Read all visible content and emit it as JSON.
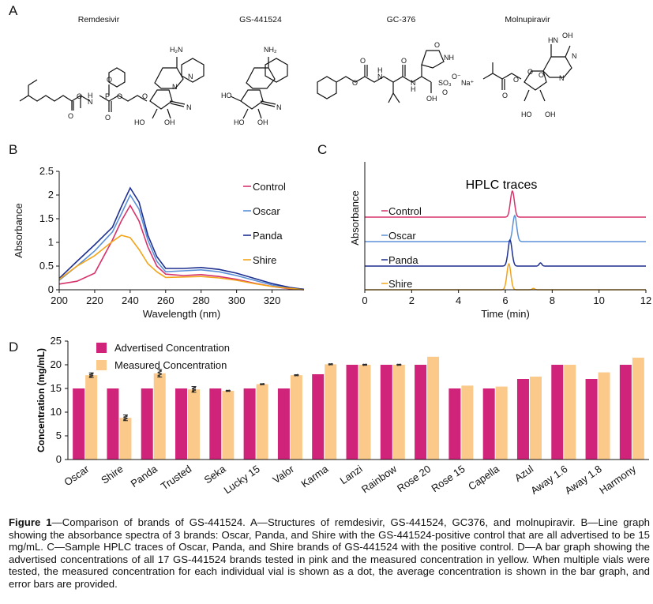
{
  "panels": {
    "a": "A",
    "b": "B",
    "c": "C",
    "d": "D"
  },
  "structures": {
    "names": [
      {
        "key": "remdesivir",
        "label": "Remdesivir"
      },
      {
        "key": "gs441524",
        "label": "GS-441524"
      },
      {
        "key": "gc376",
        "label": "GC-376"
      },
      {
        "key": "molnupiravir",
        "label": "Molnupiravir"
      }
    ]
  },
  "chart_data": [
    {
      "id": "B",
      "type": "line",
      "title": "",
      "xlabel": "Wavelength (nm)",
      "ylabel": "Absorbance",
      "xlim": [
        200,
        338
      ],
      "ylim": [
        0,
        2.5
      ],
      "xticks": [
        200,
        220,
        240,
        260,
        280,
        300,
        320
      ],
      "yticks": [
        0,
        0.5,
        1,
        1.5,
        2,
        2.5
      ],
      "ytick_labels": [
        "0",
        "0.5",
        "1",
        "1.5",
        "2",
        "2.5"
      ],
      "legend_position": "right",
      "x": [
        200,
        210,
        220,
        230,
        235,
        240,
        245,
        250,
        255,
        260,
        270,
        280,
        290,
        300,
        310,
        320,
        330,
        338
      ],
      "series": [
        {
          "name": "Control",
          "color": "#d6336c",
          "values": [
            0.12,
            0.18,
            0.35,
            1.05,
            1.45,
            1.78,
            1.45,
            0.9,
            0.5,
            0.33,
            0.3,
            0.32,
            0.28,
            0.22,
            0.14,
            0.07,
            0.02,
            0.0
          ]
        },
        {
          "name": "Oscar",
          "color": "#5b8fd8",
          "values": [
            0.2,
            0.5,
            0.82,
            1.22,
            1.6,
            2.0,
            1.7,
            1.05,
            0.6,
            0.38,
            0.4,
            0.42,
            0.38,
            0.3,
            0.2,
            0.1,
            0.04,
            0.01
          ]
        },
        {
          "name": "Panda",
          "color": "#1d2f8f",
          "values": [
            0.24,
            0.6,
            0.95,
            1.32,
            1.75,
            2.15,
            1.85,
            1.15,
            0.7,
            0.45,
            0.45,
            0.47,
            0.43,
            0.35,
            0.24,
            0.13,
            0.05,
            0.01
          ]
        },
        {
          "name": "Shire",
          "color": "#f2a51a",
          "values": [
            0.22,
            0.5,
            0.72,
            1.02,
            1.15,
            1.1,
            0.85,
            0.55,
            0.38,
            0.26,
            0.27,
            0.28,
            0.25,
            0.2,
            0.13,
            0.07,
            0.03,
            0.0
          ]
        }
      ]
    },
    {
      "id": "C",
      "type": "line",
      "title": "HPLC traces",
      "xlabel": "Time (min)",
      "ylabel": "Absorbance",
      "xlim": [
        0,
        12
      ],
      "xticks": [
        0,
        2,
        4,
        6,
        8,
        10,
        12
      ],
      "legend_position": "inline-left",
      "series": [
        {
          "name": "Control",
          "color": "#d6336c",
          "peaks": [
            {
              "t": 6.3,
              "height": 1.0,
              "width": 0.12
            }
          ]
        },
        {
          "name": "Oscar",
          "color": "#5b8fd8",
          "peaks": [
            {
              "t": 6.4,
              "height": 1.0,
              "width": 0.12
            }
          ]
        },
        {
          "name": "Panda",
          "color": "#1d2f8f",
          "peaks": [
            {
              "t": 6.2,
              "height": 1.0,
              "width": 0.12
            },
            {
              "t": 7.5,
              "height": 0.12,
              "width": 0.08
            }
          ]
        },
        {
          "name": "Shire",
          "color": "#f2a51a",
          "peaks": [
            {
              "t": 6.15,
              "height": 1.0,
              "width": 0.12
            },
            {
              "t": 7.2,
              "height": 0.05,
              "width": 0.08
            }
          ]
        }
      ]
    },
    {
      "id": "D",
      "type": "bar",
      "title": "",
      "xlabel": "",
      "ylabel": "Concentration (mg/mL)",
      "ylim": [
        0,
        25
      ],
      "yticks": [
        0,
        5,
        10,
        15,
        20,
        25
      ],
      "legend_position": "top-left",
      "categories": [
        "Oscar",
        "Shire",
        "Panda",
        "Trusted",
        "Seka",
        "Lucky 15",
        "Valor",
        "Karma",
        "Lanzi",
        "Rainbow",
        "Rose 20",
        "Rose 15",
        "Capella",
        "Azul",
        "Away 1.6",
        "Away 1.8",
        "Harmony"
      ],
      "series": [
        {
          "name": "Advertised Concentration",
          "color": "#d0247a",
          "values": [
            15,
            15,
            15,
            15,
            15,
            15,
            15,
            18,
            20,
            20,
            20,
            15,
            15,
            17,
            20,
            17,
            20
          ]
        },
        {
          "name": "Measured Concentration",
          "color": "#fbc98a",
          "values": [
            17.8,
            8.8,
            18.2,
            14.8,
            14.5,
            15.9,
            17.8,
            20.1,
            20.0,
            20.0,
            21.7,
            15.6,
            15.4,
            17.5,
            20.0,
            18.4,
            21.5
          ],
          "errors": [
            0.5,
            0.6,
            0.8,
            0.6,
            0.1,
            0.1,
            0.1,
            0.1,
            0.1,
            0.1,
            0,
            0,
            0,
            0,
            0,
            0,
            0
          ]
        }
      ]
    }
  ],
  "caption": {
    "label": "Figure 1",
    "text": "—Comparison of brands of GS-441524. A—Structures of remdesivir, GS-441524, GC376, and molnupiravir. B—Line graph showing the absorbance spectra of 3 brands: Oscar, Panda, and Shire with the GS-441524-positive control that are all advertised to be 15 mg/mL. C—Sample HPLC traces of Oscar, Panda, and Shire brands of GS-441524 with the positive control. D—A bar graph showing the advertised concentrations of all 17 GS-441524 brands tested in pink and the measured concentration in yellow. When multiple vials were tested, the measured concentration for each individual vial is shown as a dot, the average concentration is shown in the bar graph, and error bars are provided."
  }
}
